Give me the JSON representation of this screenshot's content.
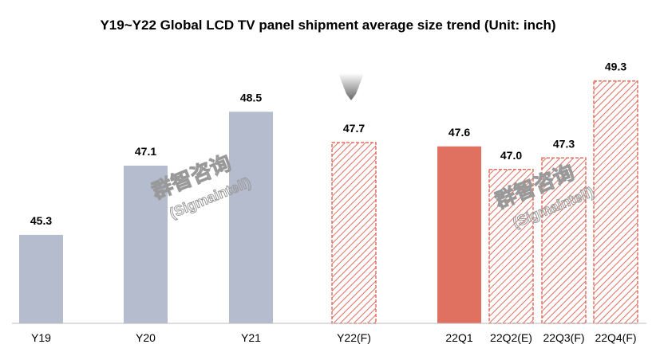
{
  "chart_data": {
    "type": "bar",
    "title": "Y19~Y22 Global LCD TV panel shipment average size trend (Unit: inch)",
    "xlabel": "",
    "ylabel": "",
    "categories": [
      "Y19",
      "Y20",
      "Y21",
      "Y22(F)",
      "22Q1",
      "22Q2(E)",
      "22Q3(F)",
      "22Q4(F)"
    ],
    "values": [
      45.3,
      47.1,
      48.5,
      47.7,
      47.6,
      47.0,
      47.3,
      49.3
    ],
    "labels": [
      "45.3",
      "47.1",
      "48.5",
      "47.7",
      "47.6",
      "47.0",
      "47.3",
      "49.3"
    ],
    "styles": [
      "solid-gray",
      "solid-gray",
      "solid-gray",
      "hatched-red",
      "solid-red",
      "hatched-red",
      "hatched-red",
      "hatched-red"
    ],
    "ylim": [
      43,
      49.6
    ],
    "grid": false,
    "colors": {
      "gray": "#b4bccd",
      "red": "#e07060",
      "text": "#000000"
    }
  },
  "watermark": {
    "cn": "群智咨询",
    "en": "(Sigmaintell)"
  }
}
